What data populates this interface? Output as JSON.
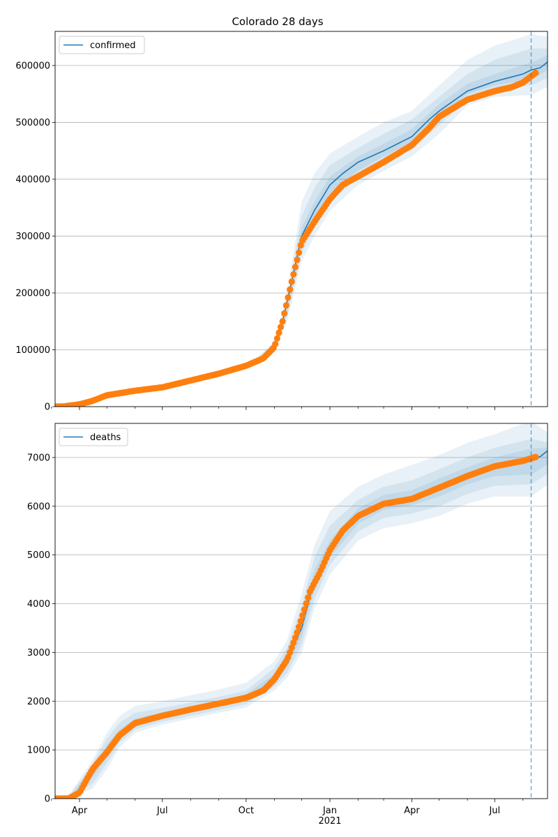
{
  "title": "Colorado 28 days",
  "x_tick_labels": [
    "Apr",
    "Jul",
    "Oct",
    "Jan",
    "Apr",
    "Jul"
  ],
  "x_year_label": "2021",
  "colors": {
    "line": "#1f77b4",
    "points": "#ff7f0e",
    "band": "#1f77b4",
    "grid": "#b0b0b0",
    "vline": "#1f77b4"
  },
  "chart_data": [
    {
      "type": "line",
      "legend": "confirmed",
      "legend_loc": "top-left",
      "grid": "y",
      "x_range": [
        "2020-03-01",
        "2021-08-31"
      ],
      "ylim": [
        0,
        660000
      ],
      "y_ticks": [
        0,
        100000,
        200000,
        300000,
        400000,
        500000,
        600000
      ],
      "forecast_start": "2021-08-10",
      "model_line": {
        "x": [
          "2020-03-01",
          "2020-04-01",
          "2020-05-01",
          "2020-06-01",
          "2020-07-01",
          "2020-08-01",
          "2020-09-01",
          "2020-10-01",
          "2020-10-20",
          "2020-11-01",
          "2020-11-10",
          "2020-11-20",
          "2020-12-01",
          "2020-12-15",
          "2021-01-01",
          "2021-01-15",
          "2021-02-01",
          "2021-03-01",
          "2021-04-01",
          "2021-04-20",
          "2021-05-01",
          "2021-06-01",
          "2021-07-01",
          "2021-08-01",
          "2021-08-10",
          "2021-08-20",
          "2021-08-31"
        ],
        "y": [
          0,
          4000,
          20000,
          28000,
          34000,
          46000,
          58000,
          72000,
          85000,
          105000,
          150000,
          220000,
          300000,
          345000,
          390000,
          410000,
          430000,
          450000,
          475000,
          505000,
          520000,
          555000,
          572000,
          585000,
          592000,
          596000,
          610000
        ]
      },
      "observed": {
        "x": [
          "2020-03-01",
          "2020-03-15",
          "2020-04-01",
          "2020-04-15",
          "2020-05-01",
          "2020-06-01",
          "2020-07-01",
          "2020-08-01",
          "2020-09-01",
          "2020-10-01",
          "2020-10-20",
          "2020-11-01",
          "2020-11-10",
          "2020-11-20",
          "2020-12-01",
          "2020-12-15",
          "2021-01-01",
          "2021-01-15",
          "2021-02-01",
          "2021-03-01",
          "2021-04-01",
          "2021-04-20",
          "2021-05-01",
          "2021-06-01",
          "2021-07-01",
          "2021-07-20",
          "2021-08-01",
          "2021-08-15"
        ],
        "y": [
          0,
          500,
          4000,
          10000,
          20000,
          28000,
          34000,
          46000,
          58000,
          72000,
          85000,
          105000,
          150000,
          220000,
          290000,
          325000,
          365000,
          390000,
          405000,
          430000,
          460000,
          490000,
          510000,
          540000,
          555000,
          562000,
          570000,
          587000
        ]
      },
      "bands": [
        {
          "x": [
            "2020-10-15",
            "2020-11-01",
            "2020-11-15",
            "2020-12-01",
            "2020-12-15",
            "2021-01-01",
            "2021-02-01",
            "2021-03-01",
            "2021-04-01",
            "2021-05-01",
            "2021-06-01",
            "2021-07-01",
            "2021-08-10",
            "2021-08-31"
          ],
          "lower": [
            78000,
            95000,
            150000,
            255000,
            300000,
            345000,
            390000,
            415000,
            440000,
            480000,
            530000,
            545000,
            548000,
            565000
          ],
          "upper": [
            90000,
            115000,
            200000,
            360000,
            410000,
            445000,
            475000,
            500000,
            520000,
            565000,
            610000,
            635000,
            655000,
            650000
          ]
        },
        {
          "x": [
            "2020-10-15",
            "2020-11-01",
            "2020-11-15",
            "2020-12-01",
            "2020-12-15",
            "2021-01-01",
            "2021-02-01",
            "2021-03-01",
            "2021-04-01",
            "2021-05-01",
            "2021-06-01",
            "2021-07-01",
            "2021-08-10",
            "2021-08-31"
          ],
          "lower": [
            81000,
            100000,
            160000,
            270000,
            315000,
            360000,
            403000,
            428000,
            455000,
            495000,
            542000,
            558000,
            565000,
            580000
          ],
          "upper": [
            88000,
            110000,
            185000,
            335000,
            385000,
            425000,
            455000,
            480000,
            505000,
            545000,
            585000,
            610000,
            630000,
            630000
          ]
        },
        {
          "x": [
            "2020-10-15",
            "2020-11-01",
            "2020-11-15",
            "2020-12-01",
            "2020-12-15",
            "2021-01-01",
            "2021-02-01",
            "2021-03-01",
            "2021-04-01",
            "2021-05-01",
            "2021-06-01",
            "2021-07-01",
            "2021-08-10",
            "2021-08-31"
          ],
          "lower": [
            83000,
            103000,
            165000,
            285000,
            330000,
            375000,
            415000,
            440000,
            465000,
            508000,
            550000,
            565000,
            575000,
            595000
          ],
          "upper": [
            86000,
            107000,
            175000,
            315000,
            360000,
            405000,
            440000,
            462000,
            488000,
            532000,
            568000,
            585000,
            605000,
            620000
          ]
        }
      ]
    },
    {
      "type": "line",
      "legend": "deaths",
      "legend_loc": "top-left",
      "grid": "y",
      "x_range": [
        "2020-03-01",
        "2021-08-31"
      ],
      "ylim": [
        0,
        7700
      ],
      "y_ticks": [
        0,
        1000,
        2000,
        3000,
        4000,
        5000,
        6000,
        7000
      ],
      "forecast_start": "2021-08-10",
      "model_line": {
        "x": [
          "2020-03-01",
          "2020-03-20",
          "2020-04-01",
          "2020-04-15",
          "2020-05-01",
          "2020-05-15",
          "2020-06-01",
          "2020-07-01",
          "2020-08-01",
          "2020-09-01",
          "2020-10-01",
          "2020-10-20",
          "2020-11-01",
          "2020-11-15",
          "2020-12-01",
          "2020-12-15",
          "2021-01-01",
          "2021-01-15",
          "2021-02-01",
          "2021-03-01",
          "2021-04-01",
          "2021-05-01",
          "2021-06-01",
          "2021-07-01",
          "2021-08-01",
          "2021-08-10",
          "2021-08-20",
          "2021-08-31"
        ],
        "y": [
          0,
          10,
          120,
          500,
          950,
          1300,
          1550,
          1700,
          1830,
          1950,
          2070,
          2220,
          2450,
          2850,
          3500,
          4500,
          5100,
          5500,
          5800,
          6080,
          6170,
          6380,
          6620,
          6820,
          6930,
          6960,
          7020,
          7180
        ]
      },
      "observed": {
        "x": [
          "2020-03-01",
          "2020-03-20",
          "2020-04-01",
          "2020-04-15",
          "2020-05-01",
          "2020-05-15",
          "2020-06-01",
          "2020-07-01",
          "2020-08-01",
          "2020-09-01",
          "2020-10-01",
          "2020-10-20",
          "2020-11-01",
          "2020-11-15",
          "2020-11-25",
          "2020-12-01",
          "2020-12-10",
          "2020-12-20",
          "2021-01-01",
          "2021-01-15",
          "2021-02-01",
          "2021-03-01",
          "2021-04-01",
          "2021-05-01",
          "2021-06-01",
          "2021-07-01",
          "2021-08-01",
          "2021-08-15"
        ],
        "y": [
          0,
          5,
          120,
          600,
          950,
          1300,
          1550,
          1700,
          1830,
          1950,
          2070,
          2220,
          2450,
          2850,
          3350,
          3700,
          4250,
          4600,
          5100,
          5500,
          5800,
          6050,
          6150,
          6380,
          6620,
          6820,
          6930,
          7010
        ]
      },
      "bands": [
        {
          "x": [
            "2020-03-20",
            "2020-04-15",
            "2020-05-01",
            "2020-05-15",
            "2020-06-01",
            "2020-07-01",
            "2020-08-01",
            "2020-09-01",
            "2020-10-01",
            "2020-11-01",
            "2020-11-15",
            "2020-12-01",
            "2020-12-15",
            "2021-01-01",
            "2021-02-01",
            "2021-03-01",
            "2021-04-01",
            "2021-05-01",
            "2021-06-01",
            "2021-07-01",
            "2021-08-10",
            "2021-08-31"
          ],
          "lower": [
            0,
            200,
            600,
            1050,
            1350,
            1520,
            1640,
            1760,
            1870,
            2220,
            2480,
            3000,
            3900,
            4600,
            5300,
            5550,
            5650,
            5800,
            6050,
            6200,
            6200,
            6480
          ],
          "upper": [
            60,
            780,
            1350,
            1700,
            1900,
            2000,
            2120,
            2240,
            2380,
            2820,
            3250,
            4200,
            5200,
            5900,
            6400,
            6650,
            6850,
            7050,
            7300,
            7480,
            7750,
            7480
          ]
        },
        {
          "x": [
            "2020-03-20",
            "2020-04-15",
            "2020-05-01",
            "2020-05-15",
            "2020-06-01",
            "2020-07-01",
            "2020-08-01",
            "2020-09-01",
            "2020-10-01",
            "2020-11-01",
            "2020-11-15",
            "2020-12-01",
            "2020-12-15",
            "2021-01-01",
            "2021-02-01",
            "2021-03-01",
            "2021-04-01",
            "2021-05-01",
            "2021-06-01",
            "2021-07-01",
            "2021-08-10",
            "2021-08-31"
          ],
          "lower": [
            0,
            300,
            720,
            1150,
            1420,
            1580,
            1700,
            1820,
            1940,
            2300,
            2580,
            3150,
            4100,
            4800,
            5480,
            5760,
            5850,
            6000,
            6250,
            6420,
            6450,
            6700
          ],
          "upper": [
            40,
            700,
            1230,
            1560,
            1760,
            1860,
            1970,
            2090,
            2220,
            2680,
            3100,
            3950,
            4950,
            5600,
            6130,
            6400,
            6530,
            6760,
            7000,
            7200,
            7380,
            7300
          ]
        },
        {
          "x": [
            "2020-03-20",
            "2020-04-15",
            "2020-05-01",
            "2020-05-15",
            "2020-06-01",
            "2020-07-01",
            "2020-08-01",
            "2020-09-01",
            "2020-10-01",
            "2020-11-01",
            "2020-11-15",
            "2020-12-01",
            "2020-12-15",
            "2021-01-01",
            "2021-02-01",
            "2021-03-01",
            "2021-04-01",
            "2021-05-01",
            "2021-06-01",
            "2021-07-01",
            "2021-08-10",
            "2021-08-31"
          ],
          "lower": [
            0,
            420,
            830,
            1230,
            1490,
            1640,
            1760,
            1880,
            2000,
            2380,
            2700,
            3320,
            4300,
            4950,
            5640,
            5930,
            6020,
            6200,
            6450,
            6620,
            6650,
            6900
          ],
          "upper": [
            25,
            620,
            1100,
            1420,
            1640,
            1770,
            1890,
            2010,
            2140,
            2560,
            2980,
            3700,
            4700,
            5300,
            5960,
            6230,
            6330,
            6570,
            6800,
            7000,
            7180,
            7200
          ]
        }
      ]
    }
  ]
}
